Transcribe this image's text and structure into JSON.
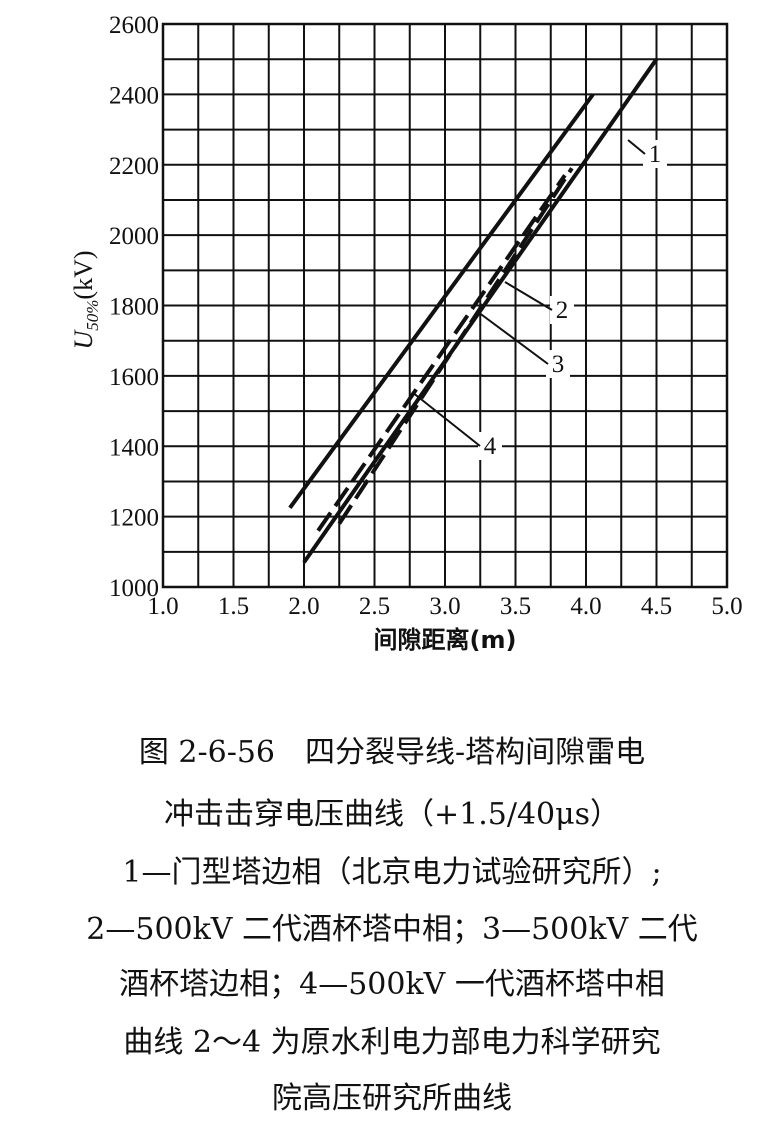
{
  "chart_data": {
    "type": "line",
    "xlabel": "间隙距离(m)",
    "ylabel": {
      "main": "U",
      "sub": "50%",
      "unit": "(kV)"
    },
    "xlim": [
      1.0,
      5.0
    ],
    "ylim": [
      1000,
      2600
    ],
    "xticks": [
      {
        "value": 1,
        "label": "1.0"
      },
      1.5,
      {
        "value": 2,
        "label": "2.0"
      },
      2.5,
      {
        "value": 3,
        "label": "3.0"
      },
      3.5,
      {
        "value": 4,
        "label": "4.0"
      },
      4.5,
      {
        "value": 5,
        "label": "5.0"
      }
    ],
    "yticks": [
      1000,
      1200,
      1400,
      1600,
      1800,
      2000,
      2200,
      2400,
      2600
    ],
    "x_gridlines": [
      1.25,
      1.75,
      2.25,
      2.75,
      3.25,
      3.75,
      4.25,
      4.75
    ],
    "y_gridlines": [
      1100,
      1300,
      1500,
      1700,
      1900,
      2100,
      2300,
      2500
    ],
    "grid": true,
    "series": [
      {
        "name": "1",
        "color": "#111111",
        "style": "solid",
        "x": [
          2.0,
          4.5
        ],
        "values": [
          1070,
          2500
        ]
      },
      {
        "name": "2",
        "color": "#111111",
        "style": "dashed",
        "x": [
          2.25,
          3.9
        ],
        "values": [
          1180,
          2190
        ]
      },
      {
        "name": "3",
        "color": "#111111",
        "style": "dashed",
        "x": [
          2.1,
          3.85
        ],
        "values": [
          1160,
          2170
        ]
      },
      {
        "name": "4",
        "color": "#111111",
        "style": "solid",
        "x": [
          1.9,
          4.05
        ],
        "values": [
          1225,
          2400
        ]
      }
    ]
  },
  "caption": [
    "图 2-6-56　四分裂导线-塔构间隙雷电",
    "冲击击穿电压曲线（+1.5/40μs）",
    "1—门型塔边相（北京电力试验研究所）;",
    "2—500kV 二代酒杯塔中相；3—500kV 二代",
    "酒杯塔边相；4—500kV 一代酒杯塔中相",
    "曲线 2～4 为原水利电力部电力科学研究",
    "院高压研究所曲线"
  ]
}
